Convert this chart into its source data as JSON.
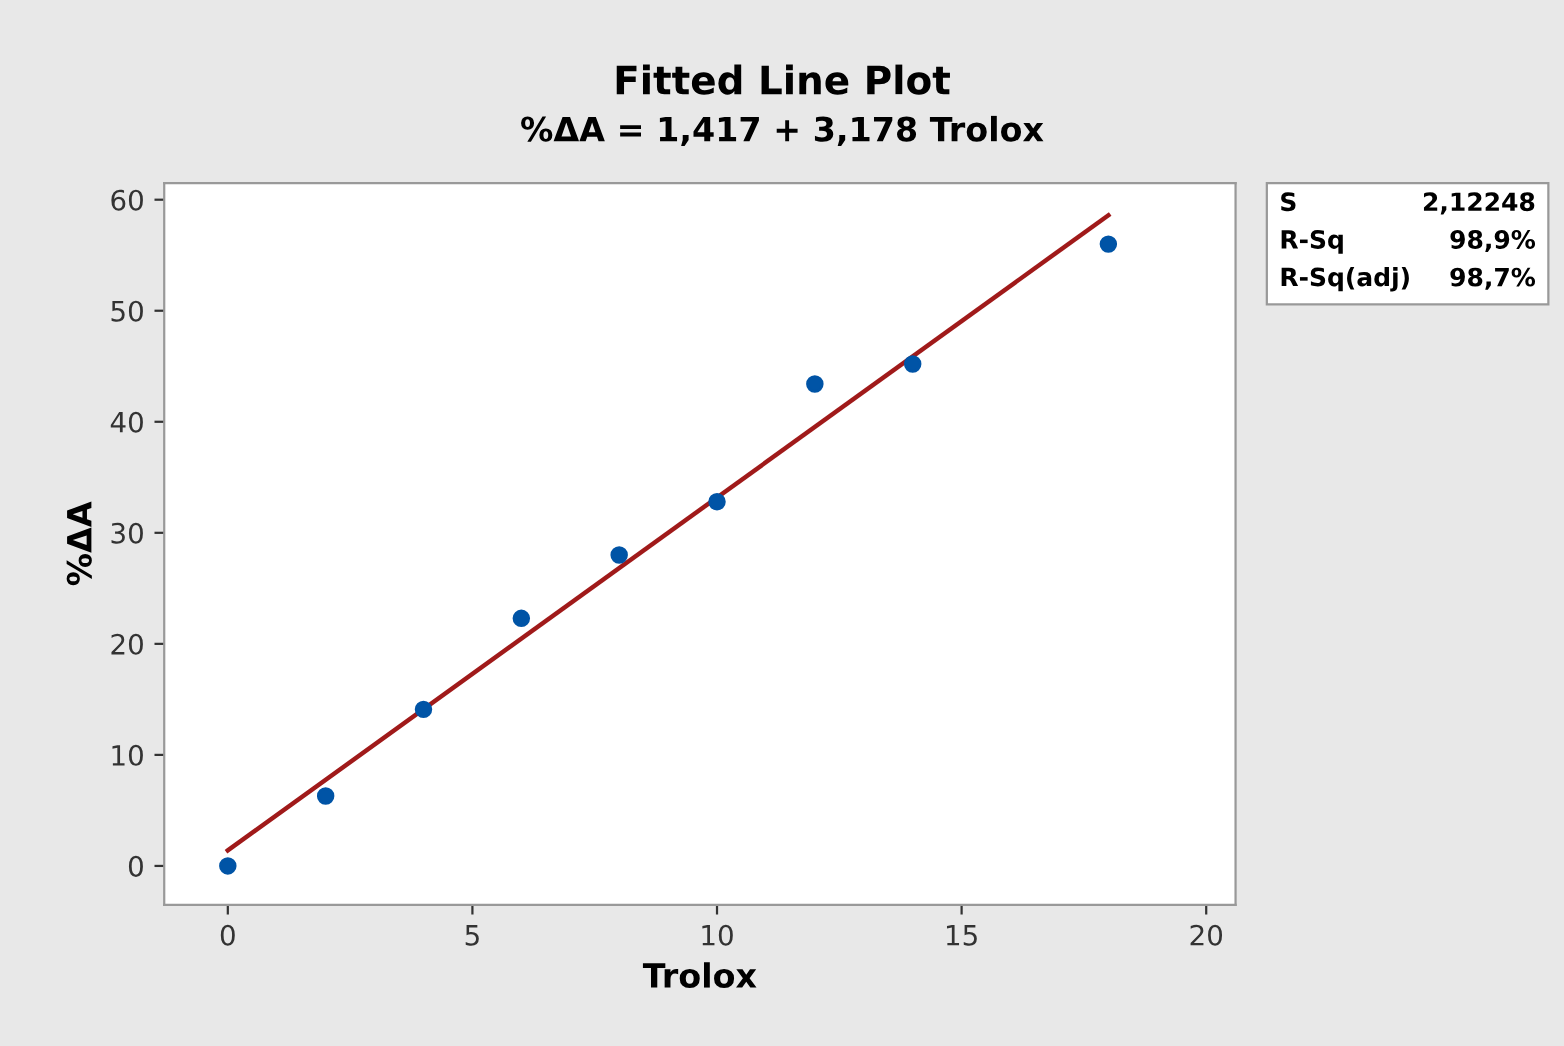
{
  "chart_data": {
    "type": "scatter",
    "title": "Fitted Line Plot",
    "subtitle": "%ΔA = 1,417 + 3,178 Trolox",
    "xlabel": "Trolox",
    "ylabel": "%ΔA",
    "xlim": [
      -1.3,
      20.6
    ],
    "ylim": [
      -3.5,
      61.5
    ],
    "xticks": [
      0,
      5,
      10,
      15,
      20
    ],
    "yticks": [
      0,
      10,
      20,
      30,
      40,
      50,
      60
    ],
    "grid": false,
    "legend": false,
    "series": [
      {
        "marker": "circle",
        "color": "#0054a6",
        "x": [
          0,
          2,
          4,
          6,
          8,
          10,
          12,
          14,
          18
        ],
        "values": [
          0,
          6.3,
          14.1,
          22.3,
          28.0,
          32.8,
          43.4,
          45.2,
          56.0
        ]
      },
      {
        "type": "line",
        "color": "#a01a1a",
        "line_style": "solid",
        "x": [
          0,
          18
        ],
        "values": [
          1.4,
          58.6
        ]
      }
    ],
    "annotations": [
      "S",
      "2,12248",
      "R-Sq",
      "98,9%",
      "R-Sq(adj)",
      "98,7%"
    ]
  }
}
